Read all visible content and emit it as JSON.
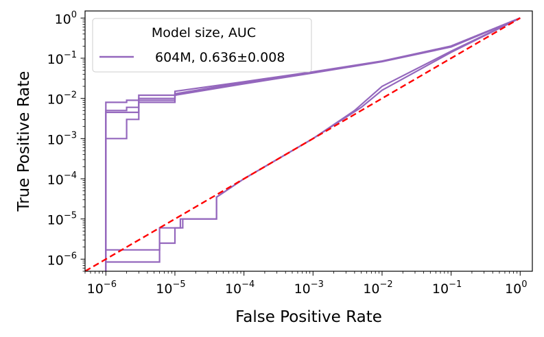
{
  "chart_data": {
    "type": "line",
    "title": "",
    "xlabel": "False Positive Rate",
    "ylabel": "True Positive Rate",
    "xscale": "log",
    "yscale": "log",
    "xlim": [
      5e-07,
      1.5
    ],
    "ylim": [
      5e-07,
      1.5
    ],
    "x_ticks": [
      1e-06,
      1e-05,
      0.0001,
      0.001,
      0.01,
      0.1,
      1
    ],
    "y_ticks": [
      1e-06,
      1e-05,
      0.0001,
      0.001,
      0.01,
      0.1,
      1
    ],
    "x_tick_labels": [
      {
        "base": "10",
        "exp": "−6"
      },
      {
        "base": "10",
        "exp": "−5"
      },
      {
        "base": "10",
        "exp": "−4"
      },
      {
        "base": "10",
        "exp": "−3"
      },
      {
        "base": "10",
        "exp": "−2"
      },
      {
        "base": "10",
        "exp": "−1"
      },
      {
        "base": "10",
        "exp": "0"
      }
    ],
    "y_tick_labels": [
      {
        "base": "10",
        "exp": "−6"
      },
      {
        "base": "10",
        "exp": "−5"
      },
      {
        "base": "10",
        "exp": "−4"
      },
      {
        "base": "10",
        "exp": "−3"
      },
      {
        "base": "10",
        "exp": "−2"
      },
      {
        "base": "10",
        "exp": "−1"
      },
      {
        "base": "10",
        "exp": "0"
      }
    ],
    "legend": {
      "title": "Model size, AUC",
      "location": "upper-left",
      "entries": [
        "604M, 0.636±0.008"
      ]
    },
    "grid": false,
    "color": "#9467bd",
    "reference_line": {
      "color": "#ff0000",
      "style": "dashed",
      "x": [
        5e-07,
        1
      ],
      "y": [
        5e-07,
        1
      ]
    },
    "series": [
      {
        "values": [
          [
            1e-06,
            0.008
          ],
          [
            2e-06,
            0.009
          ],
          [
            3e-06,
            0.012
          ],
          [
            1e-05,
            0.015
          ],
          [
            0.0001,
            0.026
          ],
          [
            0.001,
            0.046
          ],
          [
            0.01,
            0.085
          ],
          [
            0.1,
            0.2
          ],
          [
            1,
            1
          ]
        ]
      },
      {
        "values": [
          [
            1e-06,
            0.005
          ],
          [
            2e-06,
            0.006
          ],
          [
            3e-06,
            0.008
          ],
          [
            1e-05,
            0.012
          ],
          [
            0.0001,
            0.023
          ],
          [
            0.001,
            0.043
          ],
          [
            0.01,
            0.082
          ],
          [
            0.1,
            0.19
          ],
          [
            1,
            1
          ]
        ]
      },
      {
        "values": [
          [
            1e-06,
            0.0045
          ],
          [
            2e-06,
            0.0045
          ],
          [
            3e-06,
            0.01
          ],
          [
            1e-05,
            0.013
          ],
          [
            0.0001,
            0.025
          ],
          [
            0.001,
            0.045
          ],
          [
            0.01,
            0.083
          ],
          [
            0.1,
            0.2
          ],
          [
            1,
            1
          ]
        ]
      },
      {
        "values": [
          [
            1e-06,
            0.001
          ],
          [
            2e-06,
            0.003
          ],
          [
            3e-06,
            0.009
          ],
          [
            1e-05,
            0.013
          ],
          [
            0.0001,
            0.024
          ],
          [
            0.001,
            0.044
          ],
          [
            0.01,
            0.084
          ],
          [
            0.1,
            0.2
          ],
          [
            1,
            1
          ]
        ]
      },
      {
        "values": [
          [
            1e-06,
            1.7e-06
          ],
          [
            6e-06,
            6e-06
          ],
          [
            1e-05,
            6e-06
          ],
          [
            1.2e-05,
            1e-05
          ],
          [
            4e-05,
            3.5e-05
          ],
          [
            0.0001,
            0.0001
          ],
          [
            0.001,
            0.001
          ],
          [
            0.004,
            0.005
          ],
          [
            0.01,
            0.02
          ],
          [
            0.1,
            0.15
          ],
          [
            1,
            1
          ]
        ]
      },
      {
        "values": [
          [
            1e-06,
            8.5e-07
          ],
          [
            5e-06,
            8.5e-07
          ],
          [
            6e-06,
            2.5e-06
          ],
          [
            1e-05,
            6e-06
          ],
          [
            1.3e-05,
            1e-05
          ],
          [
            4e-05,
            3.5e-05
          ],
          [
            0.0001,
            0.0001
          ],
          [
            0.001,
            0.001
          ],
          [
            0.005,
            0.006
          ],
          [
            0.01,
            0.016
          ],
          [
            0.1,
            0.14
          ],
          [
            1,
            1
          ]
        ]
      }
    ]
  }
}
